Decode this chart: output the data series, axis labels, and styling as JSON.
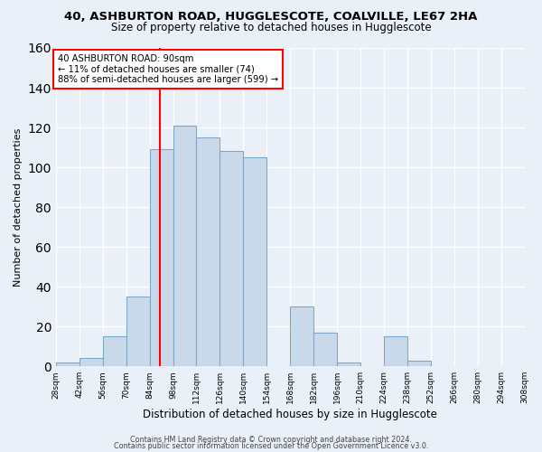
{
  "title": "40, ASHBURTON ROAD, HUGGLESCOTE, COALVILLE, LE67 2HA",
  "subtitle": "Size of property relative to detached houses in Hugglescote",
  "xlabel": "Distribution of detached houses by size in Hugglescote",
  "ylabel": "Number of detached properties",
  "bin_edges": [
    28,
    42,
    56,
    70,
    84,
    98,
    112,
    126,
    140,
    154,
    168,
    182,
    196,
    210,
    224,
    238,
    252,
    266,
    280,
    294,
    308
  ],
  "bar_heights": [
    2,
    4,
    15,
    35,
    109,
    121,
    115,
    108,
    105,
    0,
    30,
    17,
    2,
    0,
    15,
    3,
    0,
    0,
    0,
    0
  ],
  "bar_color": "#c9d9ea",
  "bar_edge_color": "#7aaac8",
  "bg_color": "#eaf0f8",
  "grid_color": "#ffffff",
  "vline_x": 90,
  "vline_color": "red",
  "annotation_line1": "40 ASHBURTON ROAD: 90sqm",
  "annotation_line2": "← 11% of detached houses are smaller (74)",
  "annotation_line3": "88% of semi-detached houses are larger (599) →",
  "annotation_box_color": "white",
  "annotation_border_color": "red",
  "ylim": [
    0,
    160
  ],
  "yticks": [
    0,
    20,
    40,
    60,
    80,
    100,
    120,
    140,
    160
  ],
  "tick_labels": [
    "28sqm",
    "42sqm",
    "56sqm",
    "70sqm",
    "84sqm",
    "98sqm",
    "112sqm",
    "126sqm",
    "140sqm",
    "154sqm",
    "168sqm",
    "182sqm",
    "196sqm",
    "210sqm",
    "224sqm",
    "238sqm",
    "252sqm",
    "266sqm",
    "280sqm",
    "294sqm",
    "308sqm"
  ],
  "footer1": "Contains HM Land Registry data © Crown copyright and database right 2024.",
  "footer2": "Contains public sector information licensed under the Open Government Licence v3.0."
}
